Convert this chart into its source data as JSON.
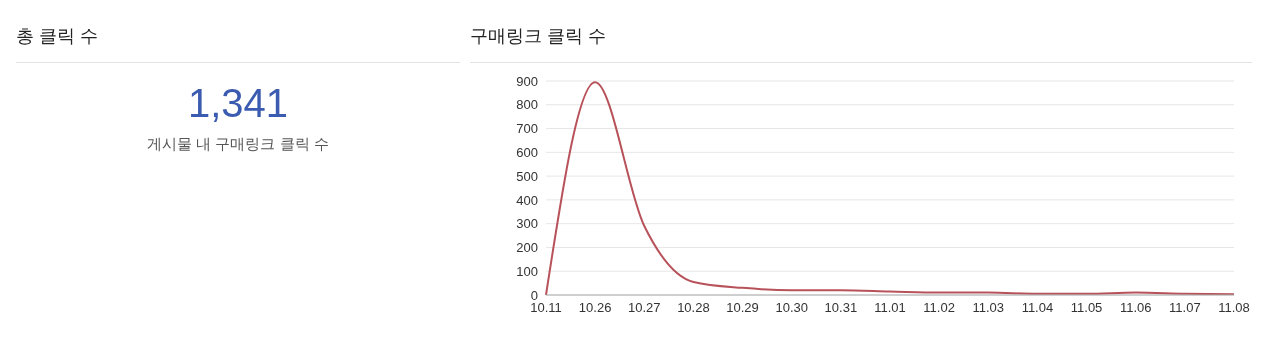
{
  "chart_data": [
    {
      "type": "other",
      "title": "총 클릭 수",
      "annotations": [
        "1,341",
        "게시물 내 구매링크 클릭 수"
      ]
    },
    {
      "type": "line",
      "title": "구매링크 클릭 수",
      "categories": [
        "10.11",
        "10.26",
        "10.27",
        "10.28",
        "10.29",
        "10.30",
        "10.31",
        "11.01",
        "11.02",
        "11.03",
        "11.04",
        "11.05",
        "11.06",
        "11.07",
        "11.08"
      ],
      "series": [
        {
          "color": "#b8525a",
          "values": [
            0,
            895,
            290,
            55,
            30,
            20,
            20,
            15,
            10,
            10,
            5,
            5,
            10,
            5,
            3
          ]
        }
      ],
      "ylim": [
        0,
        900
      ],
      "yticks": [
        0,
        100,
        200,
        300,
        400,
        500,
        600,
        700,
        800,
        900
      ],
      "grid": "y",
      "marker": "none",
      "line_style": "solid",
      "legend": false
    }
  ]
}
